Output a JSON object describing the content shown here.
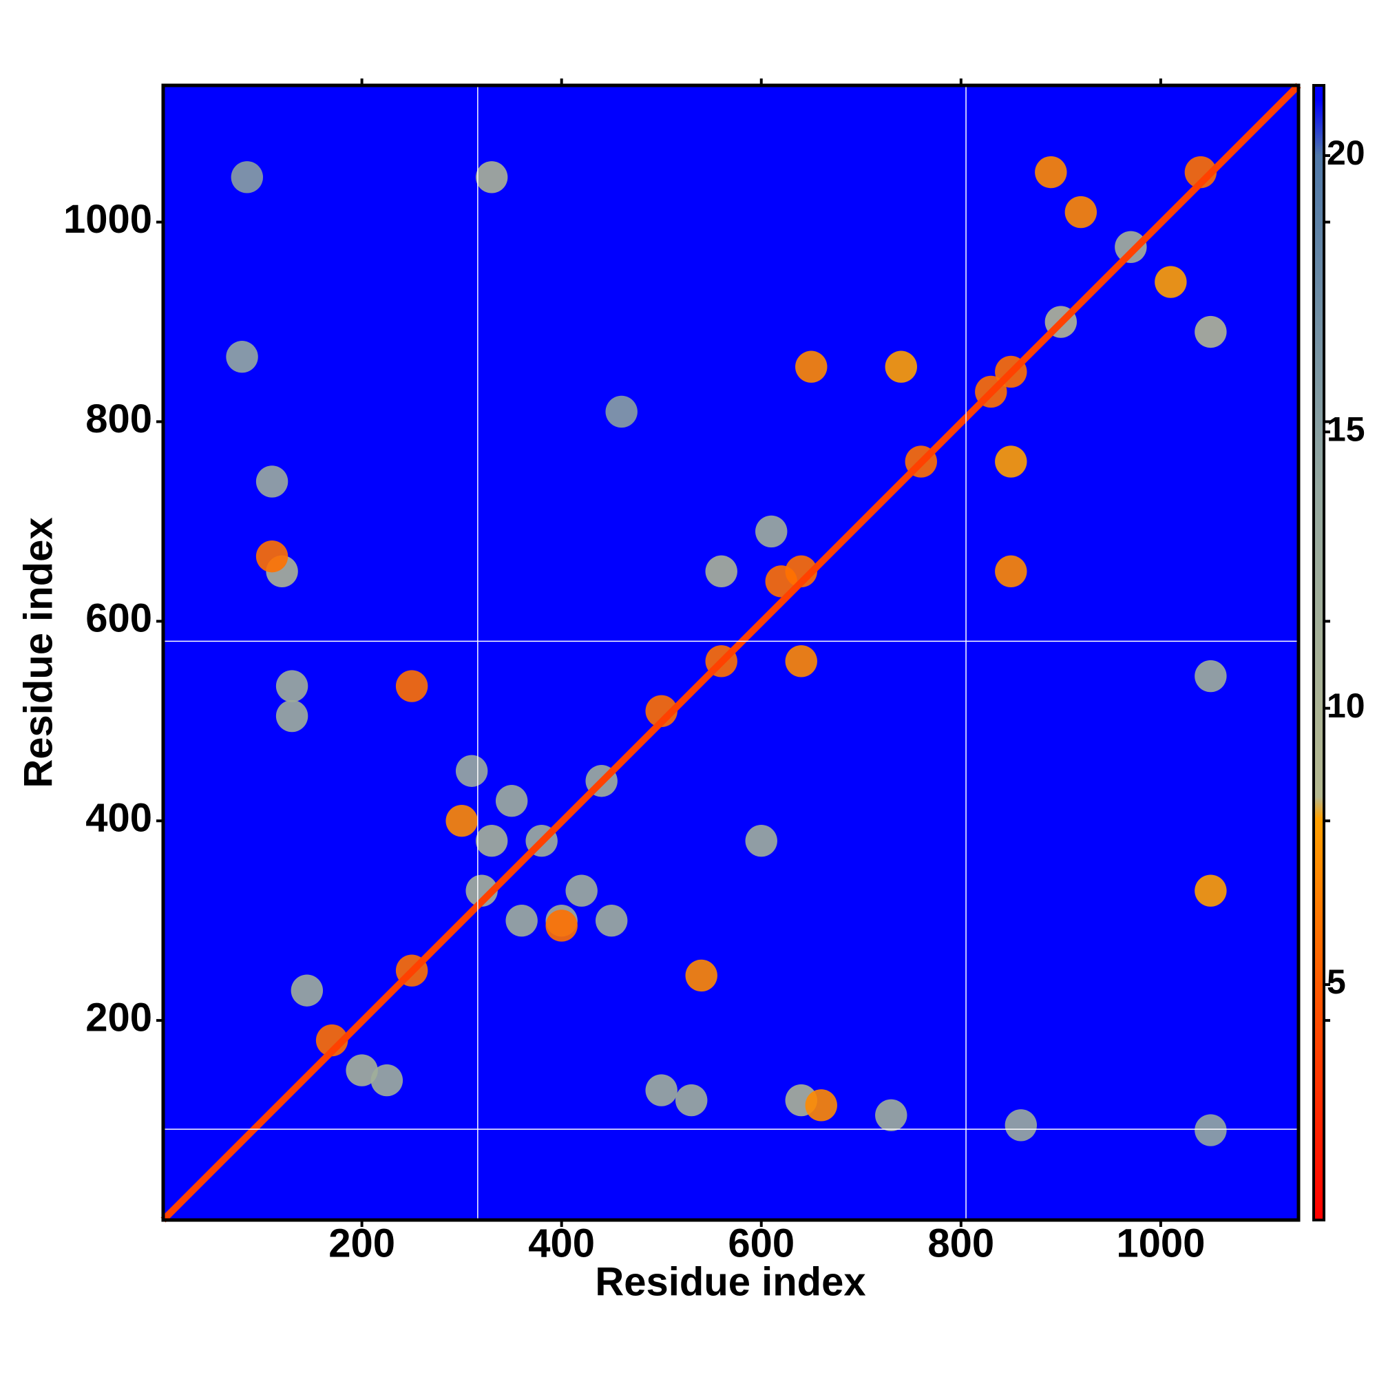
{
  "chart_data": {
    "type": "heatmap",
    "xlabel": "Residue index",
    "ylabel": "Residue index",
    "xlim": [
      1,
      1138
    ],
    "ylim": [
      0,
      1137
    ],
    "xticks": [
      200,
      400,
      600,
      800,
      1000
    ],
    "yticks": [
      200,
      400,
      600,
      800,
      1000
    ],
    "zlim": [
      0.74,
      21.27
    ],
    "colorbar_ticks": [
      5,
      10,
      15,
      20
    ],
    "colorscale": [
      [
        0.74,
        "#ff0000"
      ],
      [
        5,
        "#ff5a00"
      ],
      [
        8,
        "#ffa000"
      ],
      [
        8.4,
        "#b4b890"
      ],
      [
        14,
        "#95a8a0"
      ],
      [
        20,
        "#5078a8"
      ],
      [
        21,
        "#0000ff"
      ]
    ],
    "diagonal_value": 3.8,
    "boundaries": {
      "x": [
        316,
        805
      ],
      "y": [
        91,
        580
      ]
    },
    "x": [
      85,
      80,
      110,
      120,
      110,
      130,
      130,
      145,
      200,
      225,
      170,
      250,
      250,
      320,
      350,
      420,
      450,
      310,
      330,
      440,
      360,
      300,
      400,
      400,
      500,
      560,
      560,
      620,
      640,
      640,
      540,
      500,
      530,
      640,
      660,
      730,
      860,
      1050,
      650,
      760,
      740,
      830,
      850,
      850,
      850,
      900,
      920,
      1040,
      1010,
      1050,
      970,
      890,
      330,
      1050,
      1050,
      610,
      380,
      600,
      460
    ],
    "y": [
      1045,
      865,
      740,
      650,
      665,
      535,
      505,
      230,
      150,
      140,
      180,
      535,
      250,
      330,
      420,
      330,
      300,
      450,
      380,
      440,
      300,
      400,
      300,
      295,
      510,
      560,
      650,
      640,
      560,
      650,
      245,
      130,
      120,
      120,
      115,
      105,
      95,
      90,
      855,
      760,
      855,
      830,
      850,
      650,
      760,
      900,
      1010,
      1050,
      940,
      890,
      975,
      1050,
      1045,
      330,
      545,
      690,
      380,
      380,
      810
    ],
    "values": [
      15,
      14,
      13,
      10,
      6,
      12,
      12,
      12,
      11,
      12,
      6,
      6,
      6,
      11,
      12,
      12,
      12,
      13,
      11,
      12,
      12,
      7,
      12,
      6,
      6,
      6,
      10,
      6,
      7,
      6,
      7,
      12,
      12,
      10,
      7,
      12,
      13,
      14,
      7,
      6,
      8,
      6,
      6,
      7,
      8,
      9,
      7,
      6,
      8,
      9,
      11,
      7,
      10,
      8,
      12,
      12,
      12,
      12,
      15
    ]
  }
}
